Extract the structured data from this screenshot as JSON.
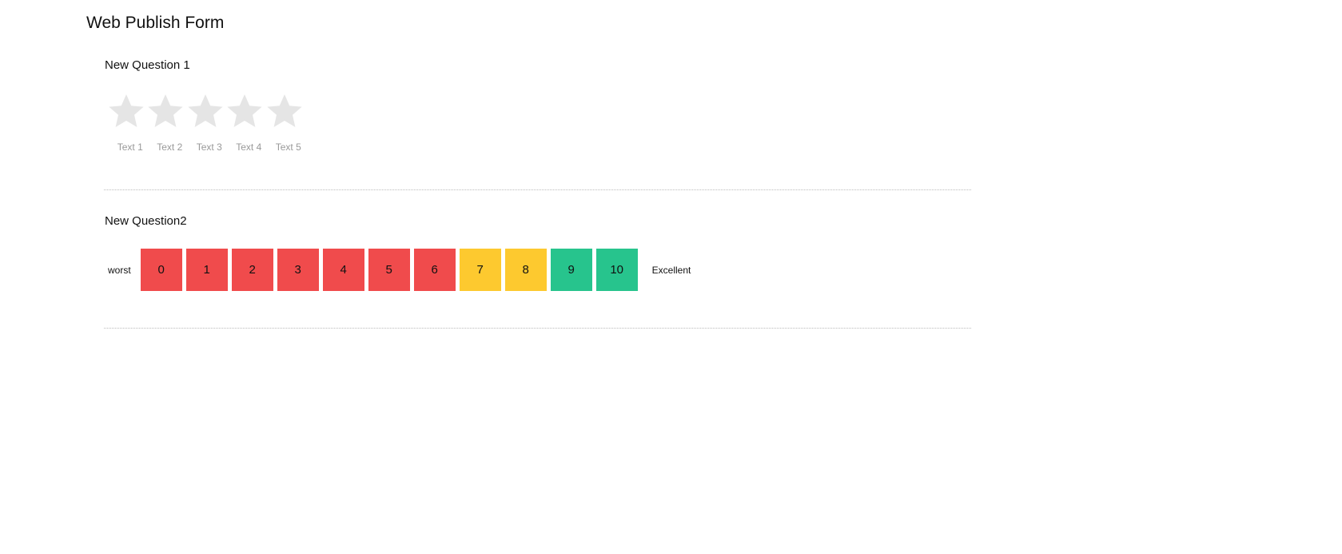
{
  "form": {
    "title": "Web Publish Form"
  },
  "q1": {
    "title": "New Question 1",
    "rating": 0,
    "max": 5,
    "star_color": "#e5e5e5",
    "labels": [
      "Text 1",
      "Text 2",
      "Text 3",
      "Text 4",
      "Text 5"
    ]
  },
  "q2": {
    "title": "New Question2",
    "low_label": "worst",
    "high_label": "Excellent",
    "options": [
      {
        "label": "0",
        "color": "#f04b4c"
      },
      {
        "label": "1",
        "color": "#f04b4c"
      },
      {
        "label": "2",
        "color": "#f04b4c"
      },
      {
        "label": "3",
        "color": "#f04b4c"
      },
      {
        "label": "4",
        "color": "#f04b4c"
      },
      {
        "label": "5",
        "color": "#f04b4c"
      },
      {
        "label": "6",
        "color": "#f04b4c"
      },
      {
        "label": "7",
        "color": "#fdc92f"
      },
      {
        "label": "8",
        "color": "#fdc92f"
      },
      {
        "label": "9",
        "color": "#27c48d"
      },
      {
        "label": "10",
        "color": "#27c48d"
      }
    ]
  }
}
